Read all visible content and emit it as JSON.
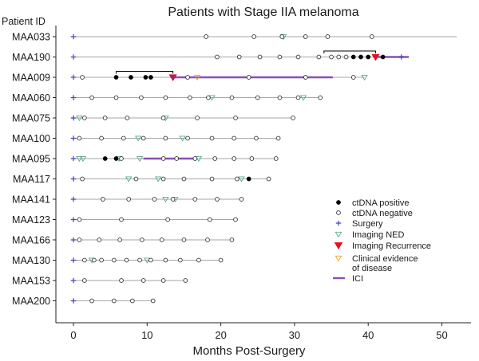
{
  "chart_data": {
    "type": "scatter",
    "title": "Patients with Stage IIA melanoma",
    "y_header": "Patient ID",
    "xlabel": "Months Post-Surgery",
    "xlim": [
      -1.5,
      53
    ],
    "x_ticks": [
      0,
      10,
      20,
      30,
      40,
      50
    ],
    "patients": [
      {
        "id": "MAA033",
        "follow_up": 52,
        "surgery": [
          0
        ],
        "ctdna_negative": [
          18,
          24.5,
          28.3,
          31.5,
          34.5,
          40.5
        ],
        "ctdna_positive": [],
        "imaging_ned": [
          28.5
        ],
        "imaging_recurrence": [],
        "clinical_evidence": [],
        "ici": [],
        "brackets": []
      },
      {
        "id": "MAA190",
        "follow_up": 45.5,
        "surgery": [
          0,
          44.5
        ],
        "ctdna_negative": [
          19.5,
          22.5,
          25.3,
          28,
          30.5,
          33.3,
          35,
          36,
          37
        ],
        "ctdna_positive": [
          38,
          39,
          40,
          42
        ],
        "imaging_ned": [],
        "imaging_recurrence": [
          41
        ],
        "clinical_evidence": [],
        "ici": [
          [
            41,
            45.5
          ]
        ],
        "brackets": [
          [
            34,
            41
          ]
        ]
      },
      {
        "id": "MAA009",
        "follow_up": 39.5,
        "surgery": [
          0,
          13.5
        ],
        "ctdna_negative": [
          1.2,
          15.5,
          23.8,
          31.5,
          38
        ],
        "ctdna_positive": [
          5.8,
          7.8,
          9.8,
          10.5
        ],
        "imaging_ned": [
          39.5
        ],
        "imaging_recurrence": [
          13.5
        ],
        "clinical_evidence": [
          16.8
        ],
        "ici": [
          [
            13.5,
            35.2
          ]
        ],
        "brackets": [
          [
            5.8,
            13.5
          ]
        ]
      },
      {
        "id": "MAA060",
        "follow_up": 33.5,
        "surgery": [
          0
        ],
        "ctdna_negative": [
          2.5,
          5.8,
          9.2,
          12.5,
          15.8,
          18.3,
          21.5,
          25,
          28,
          30.5,
          33.5
        ],
        "ctdna_positive": [],
        "imaging_ned": [
          18.8,
          31.2
        ],
        "imaging_recurrence": [],
        "clinical_evidence": [],
        "ici": [],
        "brackets": []
      },
      {
        "id": "MAA075",
        "follow_up": 29.8,
        "surgery": [
          0
        ],
        "ctdna_negative": [
          1.5,
          4.3,
          7.3,
          12.2,
          16.8,
          22,
          29.8
        ],
        "ctdna_positive": [],
        "imaging_ned": [
          0.8,
          12.5
        ],
        "imaging_recurrence": [],
        "clinical_evidence": [],
        "ici": [],
        "brackets": []
      },
      {
        "id": "MAA100",
        "follow_up": 27.8,
        "surgery": [
          0
        ],
        "ctdna_negative": [
          0.8,
          3.8,
          6.8,
          9.5,
          12.5,
          15.5,
          18.8,
          21.8,
          24.8,
          27.8
        ],
        "ctdna_positive": [],
        "imaging_ned": [
          8.8,
          14.8
        ],
        "imaging_recurrence": [],
        "clinical_evidence": [],
        "ici": [],
        "brackets": []
      },
      {
        "id": "MAA095",
        "follow_up": 27.5,
        "surgery": [
          0
        ],
        "ctdna_negative": [
          6.5,
          12.2,
          14,
          16.5,
          19.2,
          21.8,
          24.2,
          27.5
        ],
        "ctdna_positive": [
          4.3,
          5.8
        ],
        "imaging_ned": [
          0.8,
          1.3,
          6.2,
          9,
          17
        ],
        "imaging_recurrence": [],
        "clinical_evidence": [],
        "ici": [
          [
            9.5,
            16.5
          ]
        ],
        "brackets": []
      },
      {
        "id": "MAA117",
        "follow_up": 26.5,
        "surgery": [
          0
        ],
        "ctdna_negative": [
          1.2,
          8.5,
          12.2,
          15,
          18.8,
          22.2,
          26.5
        ],
        "ctdna_positive": [
          23.8
        ],
        "imaging_ned": [
          7.5,
          11.5,
          22.8
        ],
        "imaging_recurrence": [],
        "clinical_evidence": [],
        "ici": [],
        "brackets": []
      },
      {
        "id": "MAA141",
        "follow_up": 22.8,
        "surgery": [
          0
        ],
        "ctdna_negative": [
          4,
          7.5,
          11,
          13.5,
          16.5,
          19.5,
          22.8
        ],
        "ctdna_positive": [],
        "imaging_ned": [
          12.5,
          13.8
        ],
        "imaging_recurrence": [],
        "clinical_evidence": [],
        "ici": [],
        "brackets": []
      },
      {
        "id": "MAA123",
        "follow_up": 22,
        "surgery": [
          0
        ],
        "ctdna_negative": [
          0.8,
          6.5,
          12.8,
          18.5,
          22
        ],
        "ctdna_positive": [],
        "imaging_ned": [],
        "imaging_recurrence": [],
        "clinical_evidence": [],
        "ici": [],
        "brackets": []
      },
      {
        "id": "MAA166",
        "follow_up": 21.5,
        "surgery": [
          0
        ],
        "ctdna_negative": [
          0.8,
          3.5,
          6.3,
          9.3,
          12,
          15,
          18.2,
          21.5
        ],
        "ctdna_positive": [],
        "imaging_ned": [],
        "imaging_recurrence": [],
        "clinical_evidence": [],
        "ici": [],
        "brackets": []
      },
      {
        "id": "MAA130",
        "follow_up": 20,
        "surgery": [
          0
        ],
        "ctdna_negative": [
          1.5,
          2.8,
          3.8,
          5.5,
          7.2,
          9,
          10.5,
          12.5,
          14.5,
          17,
          20
        ],
        "ctdna_positive": [],
        "imaging_ned": [
          2.5,
          10
        ],
        "imaging_recurrence": [],
        "clinical_evidence": [],
        "ici": [],
        "brackets": []
      },
      {
        "id": "MAA153",
        "follow_up": 15.2,
        "surgery": [
          0
        ],
        "ctdna_negative": [
          1.5,
          6.5,
          9.5,
          12.2,
          15.2
        ],
        "ctdna_positive": [],
        "imaging_ned": [],
        "imaging_recurrence": [],
        "clinical_evidence": [],
        "ici": [],
        "brackets": []
      },
      {
        "id": "MAA200",
        "follow_up": 10.8,
        "surgery": [
          0
        ],
        "ctdna_negative": [
          2.5,
          5.5,
          8,
          10.8
        ],
        "ctdna_positive": [],
        "imaging_ned": [],
        "imaging_recurrence": [],
        "clinical_evidence": [],
        "ici": [],
        "brackets": []
      }
    ],
    "legend": {
      "position": "right",
      "items": [
        {
          "key": "ctdna_positive",
          "label": "ctDNA positive"
        },
        {
          "key": "ctdna_negative",
          "label": "ctDNA negative"
        },
        {
          "key": "surgery",
          "label": "Surgery"
        },
        {
          "key": "imaging_ned",
          "label": "Imaging NED"
        },
        {
          "key": "imaging_recurrence",
          "label": "Imaging Recurrence"
        },
        {
          "key": "clinical_evidence",
          "label": "Clinical evidence",
          "label2": "of disease"
        },
        {
          "key": "ici",
          "label": "ICI"
        }
      ]
    },
    "colors": {
      "timeline": "#a6a6a6",
      "ctdna_positive": "#000000",
      "ctdna_negative": "#333333",
      "surgery": "#4b3fb8",
      "imaging_ned": "#5aa88f",
      "imaging_recurrence": "#e8101e",
      "clinical_evidence": "#f0a020",
      "ici": "#8a4fb5",
      "axis": "#222222"
    }
  }
}
